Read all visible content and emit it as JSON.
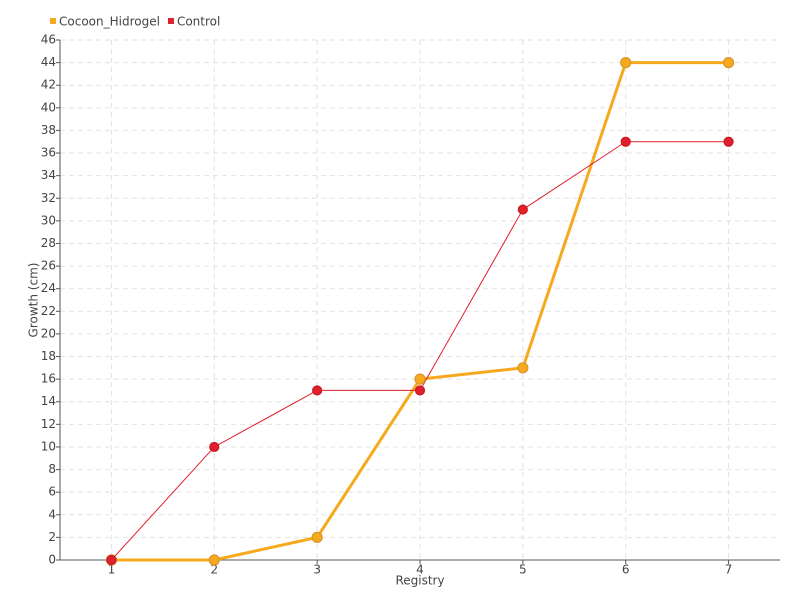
{
  "chart_data": {
    "type": "line",
    "x_label": "Registry",
    "y_label": "Growth (cm)",
    "categories": [
      "1",
      "2",
      "3",
      "4",
      "5",
      "6",
      "7"
    ],
    "series": [
      {
        "name": "Cocoon_Hidrogel",
        "color": "#f7a91e",
        "values": [
          0,
          0,
          2,
          16,
          17,
          44,
          44
        ]
      },
      {
        "name": "Control",
        "color": "#e0202c",
        "values": [
          0,
          10,
          15,
          15,
          31,
          37,
          37
        ]
      }
    ],
    "ylim": [
      0,
      46
    ],
    "yticks": [
      0,
      2,
      4,
      6,
      8,
      10,
      12,
      14,
      16,
      18,
      20,
      22,
      24,
      26,
      28,
      30,
      32,
      34,
      36,
      38,
      40,
      42,
      44,
      46
    ],
    "grid": true
  }
}
